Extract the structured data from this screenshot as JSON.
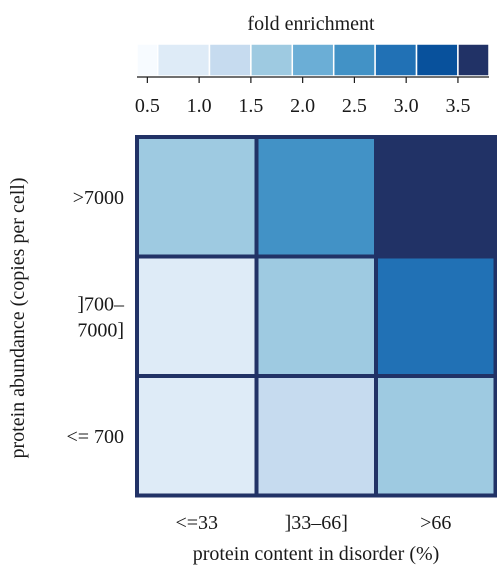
{
  "chart_data": {
    "type": "heatmap",
    "title": "fold enrichment",
    "xlabel": "protein content in disorder (%)",
    "ylabel": "protein abundance (copies per cell)",
    "x_categories": [
      "<=33",
      "]33–66]",
      ">66"
    ],
    "y_categories": [
      {
        "lines": [
          ">7000"
        ]
      },
      {
        "lines": [
          "]700–",
          "7000]"
        ]
      },
      {
        "lines": [
          "<= 700"
        ]
      }
    ],
    "values": [
      [
        1.5,
        2.6,
        3.6
      ],
      [
        0.6,
        1.8,
        3.0
      ],
      [
        0.6,
        1.2,
        1.5
      ]
    ],
    "colorbar": {
      "bins": [
        {
          "from": 0.4,
          "to": 0.6,
          "color": "#f7fbff"
        },
        {
          "from": 0.6,
          "to": 1.1,
          "color": "#deebf7"
        },
        {
          "from": 1.1,
          "to": 1.5,
          "color": "#c6dbef"
        },
        {
          "from": 1.5,
          "to": 1.9,
          "color": "#9ecae1"
        },
        {
          "from": 1.9,
          "to": 2.3,
          "color": "#6baed6"
        },
        {
          "from": 2.3,
          "to": 2.7,
          "color": "#4292c6"
        },
        {
          "from": 2.7,
          "to": 3.1,
          "color": "#2171b5"
        },
        {
          "from": 3.1,
          "to": 3.5,
          "color": "#08519c"
        },
        {
          "from": 3.5,
          "to": 3.8,
          "color": "#213266"
        }
      ],
      "ticks": [
        "0.5",
        "1.0",
        "1.5",
        "2.0",
        "2.5",
        "3.0",
        "3.5"
      ],
      "tick_values": [
        0.5,
        1.0,
        1.5,
        2.0,
        2.5,
        3.0,
        3.5
      ],
      "range": [
        0.4,
        3.8
      ]
    },
    "border_color": "#213266"
  }
}
